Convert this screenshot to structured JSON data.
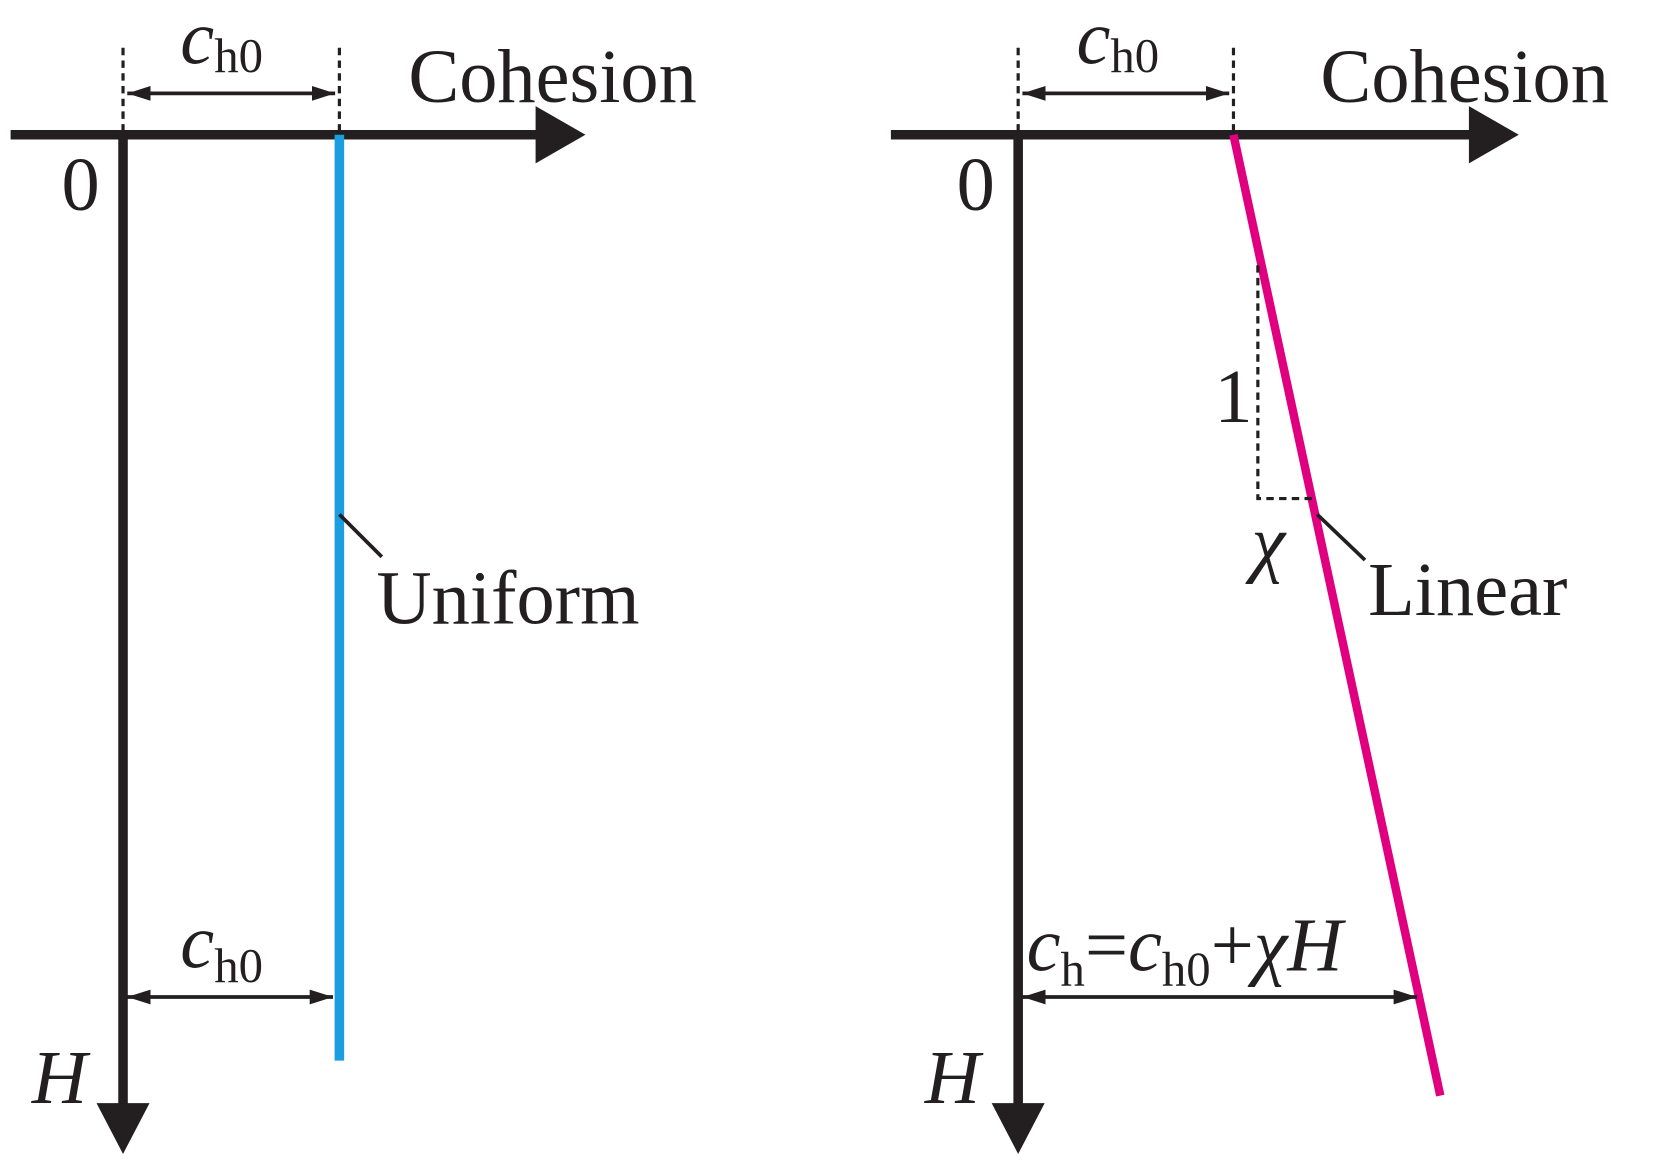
{
  "panels": [
    {
      "top_label": {
        "symbol": "c",
        "subscript": "h0"
      },
      "axis_label": "Cohesion",
      "origin": "0",
      "depth_label": "H",
      "curve_label": "Uniform",
      "bottom_label": {
        "symbol": "c",
        "subscript": "h0"
      }
    },
    {
      "top_label": {
        "symbol": "c",
        "subscript": "h0"
      },
      "axis_label": "Cohesion",
      "origin": "0",
      "depth_label": "H",
      "curve_label": "Linear",
      "slope_rise": "1",
      "slope_run": "χ",
      "formula": [
        "c",
        "h",
        "=",
        "c",
        "h0",
        "+",
        "χ",
        "H"
      ]
    }
  ]
}
